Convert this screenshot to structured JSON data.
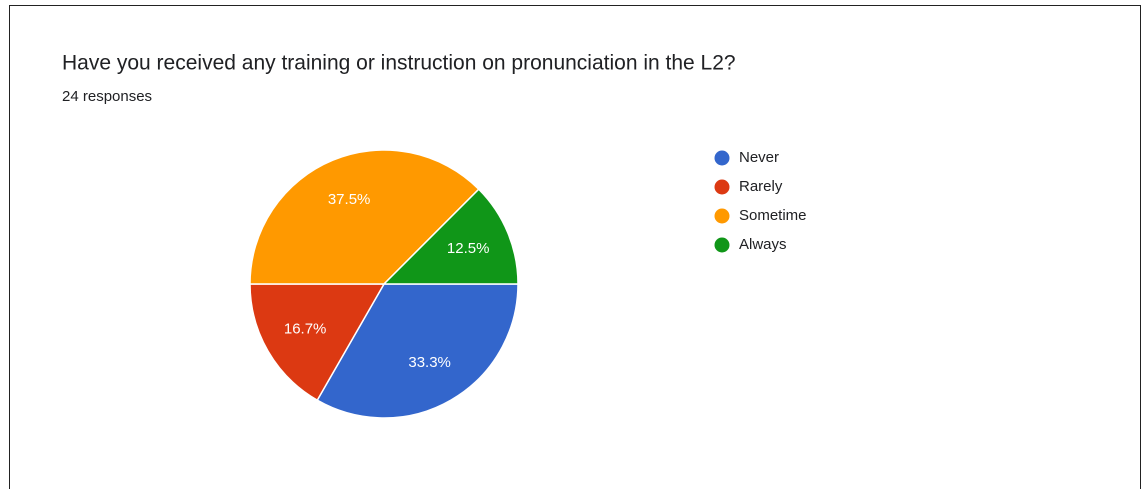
{
  "chart_data": {
    "type": "pie",
    "title": "Have you received any training or instruction on pronunciation in the L2?",
    "subtitle": "24 responses",
    "categories": [
      "Never",
      "Rarely",
      "Sometime",
      "Always"
    ],
    "values": [
      33.3,
      16.7,
      37.5,
      12.5
    ],
    "value_labels": [
      "33.3%",
      "16.7%",
      "37.5%",
      "12.5%"
    ],
    "colors": [
      "#3366cc",
      "#dc3912",
      "#ff9900",
      "#109618"
    ],
    "legend": "right"
  }
}
